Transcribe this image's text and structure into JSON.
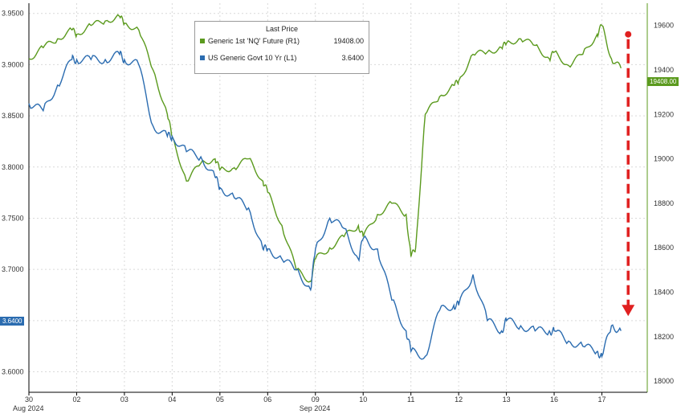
{
  "colors": {
    "green": "#5b9a1e",
    "blue": "#2b6cb0",
    "arrow": "#e02020",
    "axis": "#000000"
  },
  "legend": {
    "title": "Last Price",
    "items": [
      {
        "label": "Generic 1st 'NQ' Future  (R1)",
        "value": "19408.00",
        "color": "#5b9a1e"
      },
      {
        "label": "US Generic Govt 10 Yr  (L1)",
        "value": "3.6400",
        "color": "#2b6cb0"
      }
    ]
  },
  "last_tags": {
    "left": "3.6400",
    "right": "19408.00"
  },
  "chart_data": {
    "type": "line",
    "x_ticks": [
      "30",
      "02",
      "03",
      "04",
      "05",
      "06",
      "09",
      "10",
      "11",
      "12",
      "13",
      "16",
      "17"
    ],
    "x_sub_labels": {
      "30": "Aug 2024",
      "09": "Sep 2024"
    },
    "left_axis": {
      "ticks": [
        "3.9500",
        "3.9000",
        "3.8500",
        "3.8000",
        "3.7500",
        "3.7000",
        "3.6500",
        "3.6000"
      ],
      "ylim": [
        3.58,
        3.96
      ]
    },
    "right_axis": {
      "ticks": [
        "19600",
        "19400",
        "19200",
        "19000",
        "18800",
        "18600",
        "18400",
        "18200",
        "18000"
      ],
      "ylim": [
        17950,
        19700
      ]
    },
    "grid": true,
    "legend_position": "top-center",
    "series": [
      {
        "name": "Generic 1st 'NQ' Future  (R1)",
        "axis": "right",
        "x": [
          0,
          0.3,
          0.6,
          0.9,
          1.0,
          1.3,
          1.6,
          1.9,
          2.0,
          2.3,
          2.6,
          2.9,
          3.0,
          3.3,
          3.6,
          3.9,
          4.0,
          4.3,
          4.6,
          4.9,
          5.0,
          5.3,
          5.6,
          5.9,
          6.0,
          6.3,
          6.6,
          6.9,
          7.0,
          7.3,
          7.6,
          7.9,
          8.0,
          8.1,
          8.3,
          8.6,
          8.9,
          9.0,
          9.3,
          9.6,
          9.9,
          10.0,
          10.3,
          10.6,
          10.9,
          11.0,
          11.3,
          11.6,
          11.9,
          12.0,
          12.2,
          12.4
        ],
        "values": [
          19450,
          19500,
          19540,
          19580,
          19560,
          19600,
          19620,
          19640,
          19610,
          19580,
          19400,
          19200,
          19100,
          18900,
          18980,
          19000,
          18950,
          18960,
          19000,
          18900,
          18850,
          18700,
          18500,
          18450,
          18550,
          18600,
          18650,
          18700,
          18650,
          18750,
          18800,
          18750,
          18560,
          18600,
          19200,
          19280,
          19330,
          19350,
          19470,
          19480,
          19500,
          19520,
          19540,
          19510,
          19450,
          19480,
          19420,
          19470,
          19560,
          19600,
          19450,
          19408
        ]
      },
      {
        "name": "US Generic Govt 10 Yr  (L1)",
        "axis": "left",
        "x": [
          0,
          0.3,
          0.6,
          0.9,
          1.0,
          1.3,
          1.6,
          1.9,
          2.0,
          2.3,
          2.6,
          2.9,
          3.0,
          3.3,
          3.6,
          3.9,
          4.0,
          4.3,
          4.6,
          4.9,
          5.0,
          5.3,
          5.6,
          5.9,
          6.0,
          6.3,
          6.6,
          6.9,
          7.0,
          7.3,
          7.6,
          7.9,
          8.0,
          8.3,
          8.6,
          8.9,
          9.0,
          9.3,
          9.6,
          9.9,
          10.0,
          10.3,
          10.6,
          10.9,
          11.0,
          11.3,
          11.6,
          11.9,
          12.0,
          12.2,
          12.4
        ],
        "values": [
          3.862,
          3.855,
          3.88,
          3.905,
          3.905,
          3.905,
          3.905,
          3.91,
          3.905,
          3.9,
          3.84,
          3.83,
          3.83,
          3.815,
          3.81,
          3.79,
          3.78,
          3.77,
          3.76,
          3.72,
          3.72,
          3.71,
          3.7,
          3.68,
          3.72,
          3.75,
          3.74,
          3.71,
          3.73,
          3.72,
          3.67,
          3.64,
          3.62,
          3.615,
          3.66,
          3.665,
          3.665,
          3.695,
          3.65,
          3.64,
          3.65,
          3.645,
          3.64,
          3.64,
          3.64,
          3.63,
          3.625,
          3.62,
          3.615,
          3.645,
          3.64
        ]
      }
    ],
    "annotation": {
      "type": "arrow",
      "description_value_from": 19560,
      "value_to": 18300,
      "axis": "right",
      "x": 12.55
    }
  }
}
